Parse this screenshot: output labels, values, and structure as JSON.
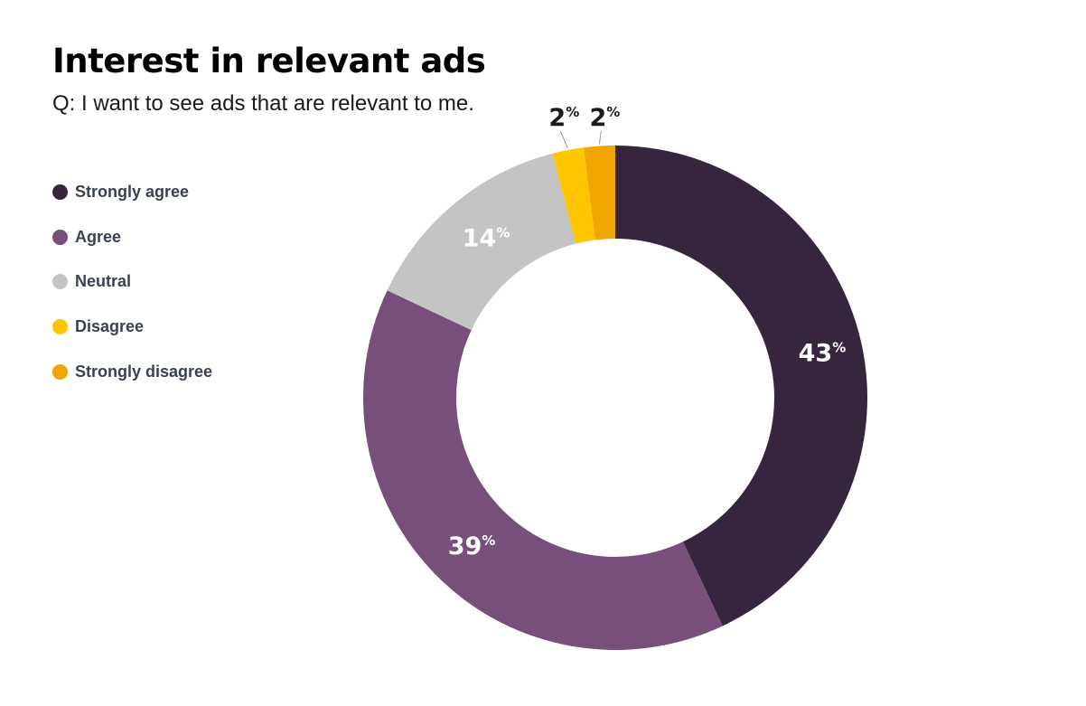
{
  "title": "Interest in relevant ads",
  "subtitle": "Q: I want to see ads that are relevant to me.",
  "chart_data": {
    "type": "pie",
    "style": "donut",
    "title": "Interest in relevant ads",
    "subtitle": "Q: I want to see ads that are relevant to me.",
    "legend_position": "left",
    "categories": [
      "Strongly agree",
      "Agree",
      "Neutral",
      "Disagree",
      "Strongly disagree"
    ],
    "values": [
      43,
      39,
      14,
      2,
      2
    ],
    "colors": [
      "#37243d",
      "#774f7a",
      "#c4c4c4",
      "#ffc600",
      "#f0a500"
    ],
    "labels": [
      "43",
      "39",
      "14",
      "2",
      "2"
    ],
    "unit_symbol": "%",
    "label_colors": [
      "#ffffff",
      "#ffffff",
      "#ffffff",
      "#1a1a1a",
      "#1a1a1a"
    ]
  }
}
